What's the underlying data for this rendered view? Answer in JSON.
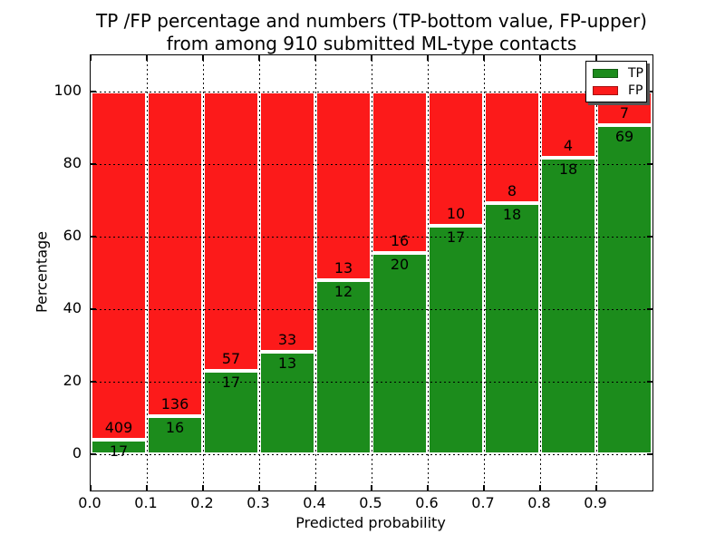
{
  "chart_data": {
    "type": "bar",
    "stacked": true,
    "title_line1": "TP /FP percentage and numbers (TP-bottom value, FP-upper)",
    "title_line2": "from among 910 submitted ML-type contacts",
    "xlabel": "Predicted probability",
    "ylabel": "Percentage",
    "x_tick_labels": [
      "0.0",
      "0.1",
      "0.2",
      "0.3",
      "0.4",
      "0.5",
      "0.6",
      "0.7",
      "0.8",
      "0.9"
    ],
    "y_tick_values": [
      0,
      20,
      40,
      60,
      80,
      100
    ],
    "xlim": [
      0.0,
      1.0
    ],
    "ylim": [
      -10,
      110
    ],
    "grid": "dotted black, both axes, drawn over bars",
    "bar_edge_color": "#ffffff",
    "total_contacts": 910,
    "legend": {
      "position": "upper right",
      "entries": [
        {
          "label": "TP",
          "color": "#1c8c1c"
        },
        {
          "label": "FP",
          "color": "#fc1a1a"
        }
      ]
    },
    "bins": [
      {
        "x_range": [
          0.0,
          0.1
        ],
        "tp": 17,
        "fp": 409,
        "tp_pct": 3.99
      },
      {
        "x_range": [
          0.1,
          0.2
        ],
        "tp": 16,
        "fp": 136,
        "tp_pct": 10.53
      },
      {
        "x_range": [
          0.2,
          0.3
        ],
        "tp": 17,
        "fp": 57,
        "tp_pct": 22.97
      },
      {
        "x_range": [
          0.3,
          0.4
        ],
        "tp": 13,
        "fp": 33,
        "tp_pct": 28.26
      },
      {
        "x_range": [
          0.4,
          0.5
        ],
        "tp": 12,
        "fp": 13,
        "tp_pct": 48.0
      },
      {
        "x_range": [
          0.5,
          0.6
        ],
        "tp": 20,
        "fp": 16,
        "tp_pct": 55.56
      },
      {
        "x_range": [
          0.6,
          0.7
        ],
        "tp": 17,
        "fp": 10,
        "tp_pct": 62.96
      },
      {
        "x_range": [
          0.7,
          0.8
        ],
        "tp": 18,
        "fp": 8,
        "tp_pct": 69.23
      },
      {
        "x_range": [
          0.8,
          0.9
        ],
        "tp": 18,
        "fp": 4,
        "tp_pct": 81.82
      },
      {
        "x_range": [
          0.9,
          1.0
        ],
        "tp": 69,
        "fp": 7,
        "tp_pct": 90.79
      }
    ]
  }
}
